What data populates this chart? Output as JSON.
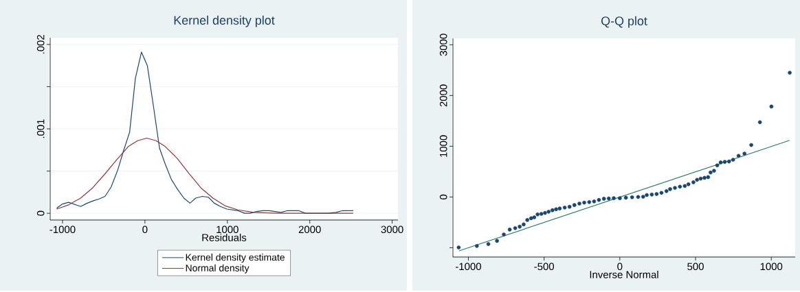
{
  "chart_data": [
    {
      "type": "line",
      "title": "Kernel density plot",
      "xlabel": "Residuals",
      "xlim": [
        -1150,
        3070
      ],
      "ylim": [
        -8e-05,
        0.00208
      ],
      "xticks": [
        -1000,
        0,
        1000,
        2000,
        3000
      ],
      "yticks": [
        {
          "value": 0,
          "label": "0"
        },
        {
          "value": 0.0005,
          "label": null
        },
        {
          "value": 0.001,
          "label": ".001"
        },
        {
          "value": 0.0015,
          "label": null
        },
        {
          "value": 0.002,
          "label": ".002"
        }
      ],
      "grid": "y",
      "legend": "bottom",
      "marker": "none",
      "series": [
        {
          "name": "Kernel density estimate",
          "color": "#1a476f",
          "x": [
            -1071,
            -1000,
            -926,
            -780,
            -700,
            -620,
            -555,
            -485,
            -411,
            -331,
            -260,
            -186,
            -116,
            -42,
            29,
            103,
            177,
            247,
            321,
            398,
            472,
            546,
            616,
            697,
            770,
            841,
            915,
            995,
            1130,
            1210,
            1274,
            1355,
            1425,
            1505,
            1579,
            1650,
            1724,
            1797,
            1868,
            1949,
            2222,
            2318,
            2392,
            2463,
            2527
          ],
          "values": [
            6e-05,
            0.00011,
            0.00013,
            8e-05,
            0.00012,
            0.00015,
            0.00017,
            0.0002,
            0.00031,
            0.00051,
            0.00074,
            0.00096,
            0.0016,
            0.00191,
            0.00175,
            0.00127,
            0.00077,
            0.00058,
            0.0004,
            0.00028,
            0.00018,
            0.00012,
            0.00018,
            0.0002,
            0.00019,
            0.00012,
            8e-05,
            5e-05,
            3e-05,
            0,
            0,
            2e-05,
            3e-05,
            3e-05,
            2e-05,
            1e-05,
            3e-05,
            3e-05,
            3e-05,
            0,
            0,
            1e-05,
            3e-05,
            3e-05,
            3e-05
          ]
        },
        {
          "name": "Normal density",
          "color": "#90353b",
          "x": [
            -1071,
            -926,
            -780,
            -636,
            -491,
            -347,
            -202,
            -90,
            22,
            135,
            247,
            392,
            536,
            680,
            825,
            969,
            1130,
            1322,
            1611,
            2527
          ],
          "values": [
            5e-05,
            0.0001,
            0.00018,
            0.0003,
            0.00046,
            0.00063,
            0.00079,
            0.00086,
            0.00089,
            0.00086,
            0.00079,
            0.00065,
            0.00047,
            0.0003,
            0.00018,
            9e-05,
            4e-05,
            1e-05,
            0,
            0
          ]
        }
      ]
    },
    {
      "type": "scatter",
      "title": "Q-Q plot",
      "xlabel": "Inverse Normal",
      "xlim": [
        -1102,
        1158
      ],
      "ylim": [
        -1184,
        3126
      ],
      "xticks": [
        -1000,
        -500,
        0,
        500,
        1000
      ],
      "yticks": [
        {
          "value": -1000,
          "label": null
        },
        0,
        1000,
        2000,
        3000
      ],
      "series": [
        {
          "color": "#1a476f",
          "marker": "circle",
          "x": [
            -1064,
            -944,
            -868,
            -811,
            -766,
            -727,
            -691,
            -661,
            -635,
            -611,
            -586,
            -565,
            -543,
            -518,
            -494,
            -470,
            -445,
            -421,
            -397,
            -364,
            -332,
            -300,
            -267,
            -235,
            -202,
            -170,
            -138,
            -105,
            -73,
            -40,
            0,
            40,
            81,
            121,
            154,
            178,
            211,
            243,
            275,
            308,
            332,
            364,
            397,
            429,
            453,
            486,
            510,
            534,
            559,
            583,
            599,
            622,
            643,
            666,
            693,
            721,
            748,
            784,
            823,
            868,
            925,
            1001,
            1122
          ],
          "values": [
            -995,
            -966,
            -928,
            -865,
            -739,
            -643,
            -614,
            -585,
            -541,
            -454,
            -420,
            -401,
            -343,
            -333,
            -314,
            -290,
            -261,
            -242,
            -227,
            -208,
            -193,
            -159,
            -130,
            -111,
            -101,
            -87,
            -58,
            -34,
            -29,
            -24,
            -24,
            -14,
            -5,
            0,
            5,
            39,
            48,
            58,
            82,
            116,
            155,
            179,
            203,
            217,
            251,
            290,
            338,
            362,
            377,
            391,
            483,
            517,
            623,
            681,
            691,
            700,
            734,
            812,
            855,
            1024,
            1473,
            1783,
            2449
          ]
        },
        {
          "type": "line",
          "color": "#2e7a63",
          "x": [
            -1062,
            1121
          ],
          "values": [
            -1063,
            1116
          ]
        }
      ]
    }
  ]
}
